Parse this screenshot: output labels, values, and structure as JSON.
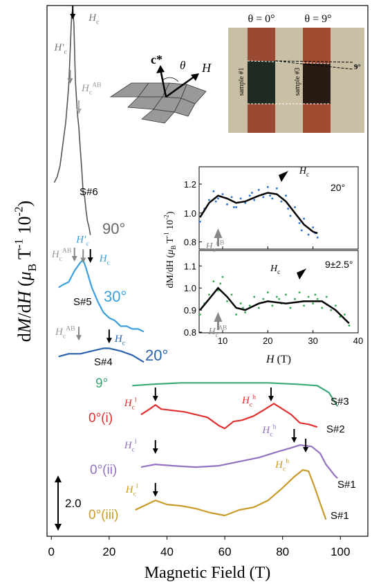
{
  "chart_data": [
    {
      "type": "line",
      "x_label": "Magnetic Field (T)",
      "y_label": [
        {
          "text": "d"
        },
        {
          "text": "M",
          "italic": true
        },
        {
          "text": "/d"
        },
        {
          "text": "H",
          "italic": true
        },
        {
          "text": " ("
        },
        {
          "text": "μ",
          "italic": true
        },
        {
          "text": "B",
          "shift": "sub"
        },
        {
          "text": " T"
        },
        {
          "text": "-1",
          "shift": "super"
        },
        {
          "text": " 10"
        },
        {
          "text": "-2",
          "shift": "super"
        },
        {
          "text": ")"
        }
      ],
      "xlim": [
        -1.5,
        109.5
      ],
      "xticks": [
        0,
        20,
        40,
        60,
        80,
        100
      ],
      "ylim": [
        0,
        19.2
      ],
      "scale_bar": {
        "value": 2,
        "label": "2.0"
      },
      "series": [
        {
          "name": "90°",
          "sample": "S#6",
          "color": "#555555",
          "x": [
            1,
            2,
            3,
            4,
            5,
            6,
            6.5,
            7,
            7.4,
            7.8,
            8.3,
            9,
            9.5,
            10,
            10.5,
            11,
            11.5,
            12,
            12.5,
            13,
            13.5
          ],
          "values": [
            12.8,
            13.0,
            13.4,
            14.2,
            15.0,
            16.3,
            17.5,
            18.8,
            19.1,
            18.5,
            16.5,
            15.3,
            14.8,
            14.0,
            13.3,
            12.4,
            12.3,
            11.8,
            11.4,
            11.2,
            10.9
          ]
        },
        {
          "name": "30°",
          "sample": "S#5",
          "color": "#3a9fdc",
          "x": [
            2.5,
            4,
            6,
            8,
            10,
            11,
            12,
            14,
            16,
            18,
            20,
            22,
            24,
            26,
            28,
            30,
            32
          ],
          "values": [
            9.0,
            9.1,
            9.2,
            9.6,
            9.9,
            10.0,
            9.7,
            9.0,
            8.5,
            8.1,
            7.9,
            7.8,
            7.6,
            7.6,
            7.5,
            7.5,
            7.4
          ]
        },
        {
          "name": "20°",
          "sample": "S#4",
          "color": "#2a62ac",
          "x": [
            2.5,
            6,
            10,
            14,
            18,
            20,
            24,
            28,
            32
          ],
          "values": [
            6.5,
            6.6,
            6.6,
            6.7,
            6.8,
            6.8,
            6.7,
            6.55,
            6.3
          ]
        },
        {
          "name": "9°",
          "sample": "S#3",
          "color": "#3aa876",
          "x": [
            28,
            35,
            45,
            55,
            65,
            75,
            85,
            92,
            96,
            99
          ],
          "values": [
            5.45,
            5.5,
            5.55,
            5.55,
            5.55,
            5.55,
            5.5,
            5.45,
            5.2,
            4.7
          ]
        },
        {
          "name": "0°(i)",
          "sample": "S#2",
          "color": "#e03030",
          "x": [
            31,
            34,
            36,
            38,
            42,
            46,
            50,
            54,
            58,
            60,
            63,
            66,
            70,
            74,
            77,
            80,
            83,
            86,
            89,
            92
          ],
          "values": [
            4.4,
            4.6,
            4.75,
            4.6,
            4.55,
            4.5,
            4.4,
            4.3,
            4.0,
            3.9,
            4.15,
            4.2,
            4.35,
            4.6,
            4.8,
            4.6,
            4.4,
            4.1,
            4.05,
            3.95
          ]
        },
        {
          "name": "0°(ii)",
          "sample": "S#1",
          "color": "#9370c0",
          "x": [
            31,
            36,
            42,
            50,
            58,
            65,
            72,
            78,
            83,
            86,
            90,
            93,
            95,
            98,
            99
          ],
          "values": [
            2.5,
            2.6,
            2.55,
            2.5,
            2.55,
            2.7,
            2.85,
            3.05,
            3.2,
            3.3,
            3.25,
            3.0,
            2.6,
            2.2,
            2.1
          ]
        },
        {
          "name": "0°(iii)",
          "sample": "S#1",
          "color": "#c89a28",
          "x": [
            29,
            33,
            36,
            40,
            45,
            50,
            55,
            60,
            65,
            70,
            75,
            80,
            84,
            87,
            89,
            91,
            93,
            95
          ],
          "values": [
            0.95,
            1.15,
            1.3,
            1.15,
            1.1,
            1.0,
            0.85,
            0.75,
            0.95,
            1.05,
            1.3,
            1.75,
            2.15,
            2.4,
            2.35,
            1.8,
            1.2,
            0.6
          ]
        }
      ],
      "annotations": [
        {
          "x": 7.4,
          "level": 19.2,
          "color": "#000000",
          "label_color": "#777777",
          "label": [
            {
              "text": "H",
              "italic": true
            },
            {
              "text": "c",
              "shift": "sub"
            }
          ]
        },
        {
          "x": 6.5,
          "level": 16.87,
          "color": "#888888",
          "label_color": "#777777",
          "label": [
            {
              "text": "H′",
              "italic": true
            },
            {
              "text": "c",
              "shift": "sub"
            }
          ]
        },
        {
          "x": 9.5,
          "level": 15.77,
          "color": "#aaaaaa",
          "label_color": "#999999",
          "label": [
            {
              "text": "H",
              "italic": true
            },
            {
              "text": "c",
              "shift": "sub"
            },
            {
              "text": "AB",
              "shift": "super"
            }
          ]
        },
        {
          "x": 8,
          "level": 10.44,
          "color": "#888888",
          "label_color": "#999999",
          "label": [
            {
              "text": "H",
              "italic": true
            },
            {
              "text": "c",
              "shift": "sub"
            },
            {
              "text": "AB",
              "shift": "super"
            }
          ]
        },
        {
          "x": 11,
          "level": 10.38,
          "color": "#888888",
          "label_color": "#3a9fdc",
          "label": [
            {
              "text": "H′",
              "italic": true
            },
            {
              "text": "c",
              "shift": "sub"
            }
          ]
        },
        {
          "x": 13.5,
          "level": 10.39,
          "color": "#000000",
          "label_color": "#3a9fdc",
          "label": [
            {
              "text": "H",
              "italic": true
            },
            {
              "text": "c",
              "shift": "sub"
            }
          ]
        },
        {
          "x": 9.5,
          "level": 7.58,
          "color": "#888888",
          "label_color": "#999999",
          "label": [
            {
              "text": "H",
              "italic": true
            },
            {
              "text": "c",
              "shift": "sub"
            },
            {
              "text": "AB",
              "shift": "super"
            }
          ]
        },
        {
          "x": 20,
          "level": 7.48,
          "color": "#000000",
          "label_color": "#2a62ac",
          "label": [
            {
              "text": "H",
              "italic": true
            },
            {
              "text": "c",
              "shift": "sub"
            }
          ]
        },
        {
          "x": 36,
          "level": 5.38,
          "color": "#000000",
          "label_color": "#e03030",
          "label": [
            {
              "text": "H",
              "italic": true
            },
            {
              "text": "c",
              "shift": "sub"
            },
            {
              "text": "l",
              "shift": "super"
            }
          ]
        },
        {
          "x": 76,
          "level": 5.38,
          "color": "#000000",
          "label_color": "#e03030",
          "label": [
            {
              "text": "H",
              "italic": true
            },
            {
              "text": "c",
              "shift": "sub"
            },
            {
              "text": "h",
              "shift": "super"
            }
          ]
        },
        {
          "x": 36,
          "level": 3.48,
          "color": "#000000",
          "label_color": "#9370c0",
          "label": [
            {
              "text": "H",
              "italic": true
            },
            {
              "text": "c",
              "shift": "sub"
            },
            {
              "text": "l",
              "shift": "super"
            }
          ]
        },
        {
          "x": 84,
          "level": 3.88,
          "color": "#000000",
          "label_color": "#9370c0",
          "label": [
            {
              "text": "H",
              "italic": true
            },
            {
              "text": "c",
              "shift": "sub"
            },
            {
              "text": "h",
              "shift": "super"
            }
          ]
        },
        {
          "x": 36,
          "level": 1.93,
          "color": "#000000",
          "label_color": "#c89a28",
          "label": [
            {
              "text": "H",
              "italic": true
            },
            {
              "text": "c",
              "shift": "sub"
            },
            {
              "text": "l",
              "shift": "super"
            }
          ]
        },
        {
          "x": 88,
          "level": 3.53,
          "color": "#000000",
          "label_color": "#c89a28",
          "label": [
            {
              "text": "H",
              "italic": true
            },
            {
              "text": "c",
              "shift": "sub"
            },
            {
              "text": "h",
              "shift": "super"
            }
          ]
        }
      ]
    },
    {
      "type": "scatter",
      "panel_label": "20°",
      "y_label": [
        {
          "text": "dM/dH ("
        },
        {
          "text": "μ",
          "italic": true
        },
        {
          "text": "B",
          "shift": "sub"
        },
        {
          "text": " T"
        },
        {
          "text": "-1",
          "shift": "super"
        },
        {
          "text": " 10"
        },
        {
          "text": "-2",
          "shift": "super"
        },
        {
          "text": ")"
        }
      ],
      "xlim": [
        4.8,
        40
      ],
      "xticks": [
        10,
        20,
        30,
        40
      ],
      "ylim": [
        0.75,
        1.32
      ],
      "yticks": [
        0.8,
        {
          "value": 1,
          "label": "1.0"
        },
        1.2
      ],
      "series": [
        {
          "color": "#2f74c8",
          "style": "points",
          "x": [
            5,
            6,
            7,
            8,
            9,
            10,
            11,
            12,
            13,
            14,
            15,
            16,
            17,
            18,
            19,
            20,
            21,
            22,
            23,
            24,
            25,
            26,
            27,
            28,
            29,
            30,
            31,
            5.5,
            8.5,
            12.5,
            16.5,
            20.5,
            24.5,
            27.5,
            30.5
          ],
          "values": [
            0.94,
            1.03,
            1.09,
            1.15,
            1.1,
            1.13,
            1.06,
            1.11,
            1.04,
            1.1,
            1.07,
            1.12,
            1.09,
            1.16,
            1.11,
            1.18,
            1.1,
            1.17,
            1.08,
            1.12,
            0.98,
            1.04,
            0.93,
            0.96,
            0.85,
            0.9,
            0.83,
            1.0,
            1.08,
            1.04,
            1.14,
            1.12,
            1.03,
            0.88,
            0.86
          ]
        },
        {
          "color": "#000000",
          "style": "line",
          "x": [
            5,
            7,
            9,
            11,
            13,
            15,
            18,
            20,
            22,
            24,
            26,
            28,
            30,
            31
          ],
          "values": [
            0.97,
            1.07,
            1.12,
            1.1,
            1.07,
            1.08,
            1.12,
            1.14,
            1.13,
            1.08,
            1.0,
            0.92,
            0.87,
            0.86
          ]
        }
      ],
      "annotations": [
        {
          "x": 23,
          "shape": "triangle",
          "color": "#000000",
          "label": [
            {
              "text": "H",
              "italic": true
            },
            {
              "text": "c",
              "shift": "sub"
            }
          ]
        },
        {
          "x": 9,
          "shape": "arrow",
          "color": "#888888",
          "label": [
            {
              "text": "H",
              "italic": true
            },
            {
              "text": "c",
              "shift": "sub"
            },
            {
              "text": "AB",
              "shift": "super"
            }
          ]
        }
      ]
    },
    {
      "type": "scatter",
      "panel_label": "9±2.5°",
      "x_label": [
        {
          "text": "H",
          "italic": true
        },
        {
          "text": "  (T)"
        }
      ],
      "xlim": [
        4.8,
        40
      ],
      "xticks": [
        10,
        20,
        30,
        40
      ],
      "ylim": [
        0.797,
        1.17
      ],
      "yticks": [
        0.8,
        0.9,
        {
          "value": 1,
          "label": "1.0"
        },
        1.1
      ],
      "series": [
        {
          "color": "#3aa85a",
          "style": "points",
          "x": [
            5,
            6,
            7,
            8,
            9,
            10,
            11,
            12,
            13,
            14,
            15,
            16,
            17,
            18,
            19,
            20,
            21,
            22,
            23,
            24,
            25,
            26,
            27,
            28,
            29,
            30,
            31,
            32,
            33,
            34,
            35,
            36,
            37,
            38,
            9.5,
            14.5,
            22.5,
            30.5
          ],
          "values": [
            0.88,
            0.93,
            0.97,
            1.03,
            0.99,
            1.05,
            0.94,
            0.97,
            0.88,
            0.93,
            0.89,
            0.92,
            0.96,
            0.91,
            0.95,
            0.98,
            0.92,
            0.96,
            0.93,
            0.97,
            0.91,
            0.95,
            0.98,
            0.92,
            0.96,
            0.93,
            0.95,
            0.91,
            0.96,
            0.9,
            0.92,
            0.87,
            0.88,
            0.83,
            1.02,
            0.91,
            0.95,
            0.97
          ]
        },
        {
          "color": "#000000",
          "style": "line",
          "x": [
            5,
            7,
            9,
            11,
            13,
            15,
            18,
            20,
            24,
            28,
            32,
            35,
            38
          ],
          "values": [
            0.9,
            0.95,
            1.0,
            0.96,
            0.91,
            0.9,
            0.93,
            0.94,
            0.93,
            0.94,
            0.94,
            0.9,
            0.84
          ]
        }
      ],
      "annotations": [
        {
          "x": 27,
          "shape": "triangle",
          "color": "#000000",
          "label": [
            {
              "text": "H",
              "italic": true
            },
            {
              "text": "c",
              "shift": "sub"
            }
          ]
        },
        {
          "x": 9,
          "shape": "arrow",
          "color": "#888888",
          "label": [
            {
              "text": "H",
              "italic": true
            },
            {
              "text": "c",
              "shift": "sub"
            },
            {
              "text": "AB",
              "shift": "super"
            }
          ]
        }
      ]
    }
  ],
  "schematic": {
    "c_axis": "c*",
    "angle": "θ",
    "field": "H"
  },
  "photo": {
    "left_title": "θ = 0°",
    "right_title": "θ = 9°",
    "left_sample": "sample #1",
    "right_sample": "sample #3",
    "tilt": "9°"
  }
}
